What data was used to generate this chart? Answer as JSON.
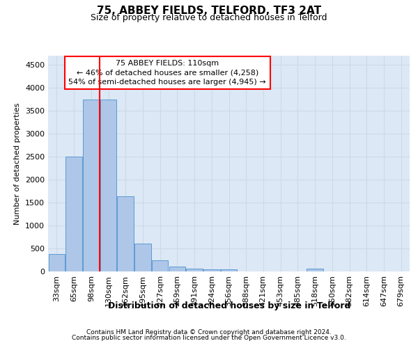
{
  "title1": "75, ABBEY FIELDS, TELFORD, TF3 2AT",
  "title2": "Size of property relative to detached houses in Telford",
  "xlabel": "Distribution of detached houses by size in Telford",
  "ylabel": "Number of detached properties",
  "footer1": "Contains HM Land Registry data © Crown copyright and database right 2024.",
  "footer2": "Contains public sector information licensed under the Open Government Licence v3.0.",
  "categories": [
    "33sqm",
    "65sqm",
    "98sqm",
    "130sqm",
    "162sqm",
    "195sqm",
    "227sqm",
    "259sqm",
    "291sqm",
    "324sqm",
    "356sqm",
    "388sqm",
    "421sqm",
    "453sqm",
    "485sqm",
    "518sqm",
    "550sqm",
    "582sqm",
    "614sqm",
    "647sqm",
    "679sqm"
  ],
  "values": [
    380,
    2500,
    3750,
    3750,
    1640,
    600,
    240,
    100,
    60,
    45,
    45,
    0,
    0,
    0,
    0,
    55,
    0,
    0,
    0,
    0,
    0
  ],
  "bar_color": "#aec6e8",
  "bar_edge_color": "#5b9bd5",
  "red_line_x": 2.5,
  "annotation_line1": "75 ABBEY FIELDS: 110sqm",
  "annotation_line2": "← 46% of detached houses are smaller (4,258)",
  "annotation_line3": "54% of semi-detached houses are larger (4,945) →",
  "annotation_box_color": "white",
  "annotation_box_edge_color": "red",
  "ylim": [
    0,
    4700
  ],
  "yticks": [
    0,
    500,
    1000,
    1500,
    2000,
    2500,
    3000,
    3500,
    4000,
    4500
  ],
  "grid_color": "#ccd9e8",
  "bg_color": "#dce8f5",
  "title1_fontsize": 11,
  "title2_fontsize": 9,
  "ylabel_fontsize": 8,
  "xlabel_fontsize": 9,
  "tick_fontsize": 8,
  "annot_fontsize": 8
}
